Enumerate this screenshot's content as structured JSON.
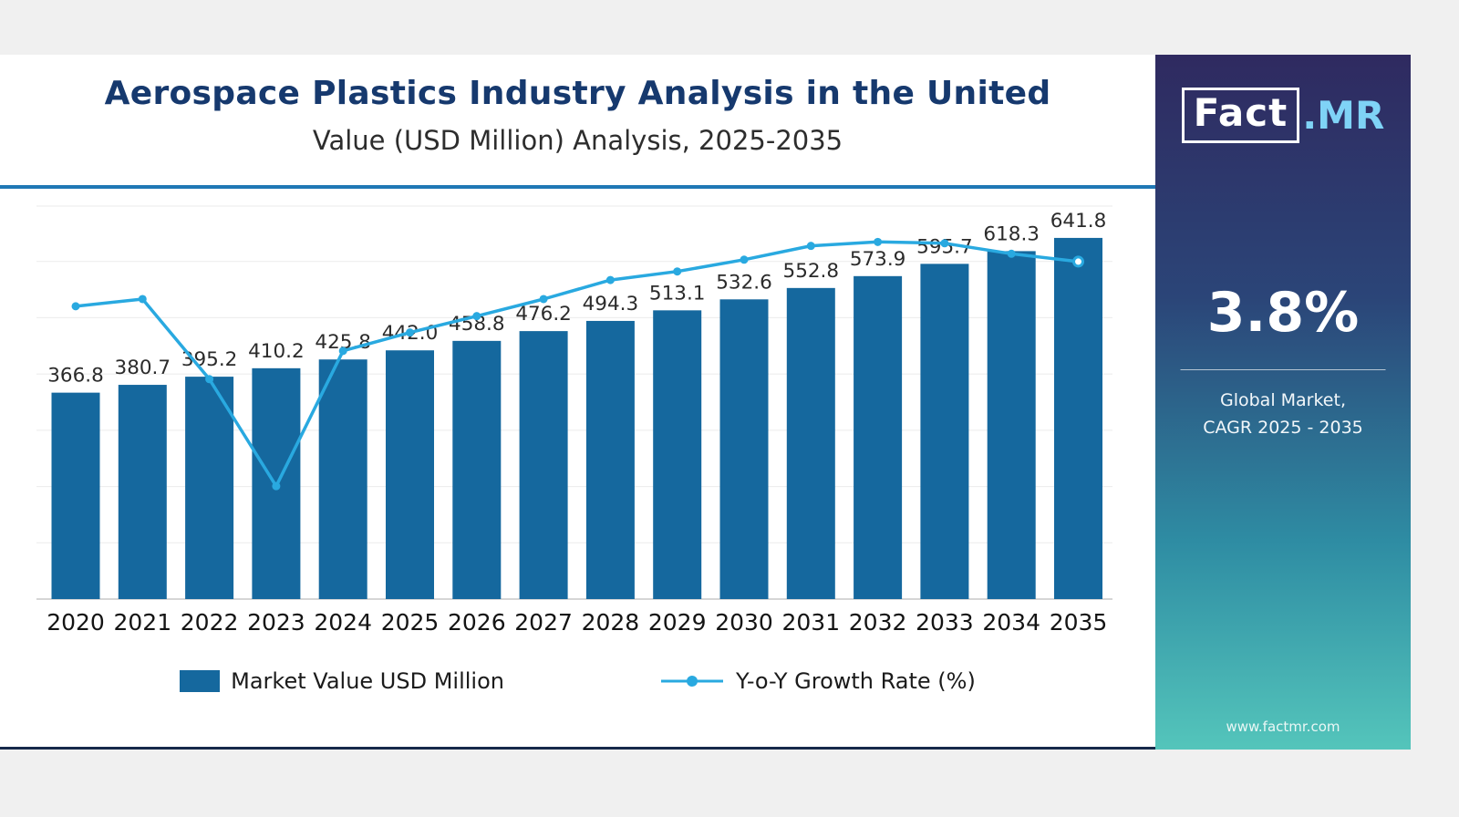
{
  "header": {
    "title": "Aerospace Plastics Industry Analysis in the United",
    "subtitle": "Value (USD Million) Analysis, 2025-2035"
  },
  "chart_data": {
    "type": "bar+line",
    "categories": [
      "2020",
      "2021",
      "2022",
      "2023",
      "2024",
      "2025",
      "2026",
      "2027",
      "2028",
      "2029",
      "2030",
      "2031",
      "2032",
      "2033",
      "2034",
      "2035"
    ],
    "series": [
      {
        "name": "Market Value USD Million",
        "type": "bar",
        "values": [
          366.8,
          380.7,
          395.2,
          410.2,
          425.8,
          442.0,
          458.8,
          476.2,
          494.3,
          513.1,
          532.6,
          552.8,
          573.9,
          595.7,
          618.3,
          641.8
        ]
      },
      {
        "name": "Y-o-Y Growth Rate (%)",
        "type": "line",
        "values_estimated": [
          4.46,
          4.57,
          3.35,
          1.72,
          3.78,
          4.06,
          4.31,
          4.57,
          4.86,
          4.99,
          5.17,
          5.38,
          5.44,
          5.42,
          5.26,
          5.14
        ],
        "note": "secondary axis unlabeled in image; values estimated from line position"
      }
    ],
    "ylim": [
      0,
      700
    ],
    "y2lim": [
      0,
      6
    ],
    "grid": "horizontal",
    "legend_position": "bottom",
    "value_labels_shown": true
  },
  "sidebar": {
    "logo": {
      "fact": "Fact",
      "mr": ".MR"
    },
    "cagr": "3.8%",
    "caption_line1": "Global Market,",
    "caption_line2": "CAGR 2025 - 2035",
    "website": "www.factmr.com"
  },
  "colors": {
    "bar": "#15689E",
    "line": "#29A9E0",
    "accent_rule": "#1F78B5",
    "title": "#16396E",
    "panel_top": "#2F2A60",
    "panel_bottom": "#54C5BB",
    "bottom_line": "#16294A"
  }
}
